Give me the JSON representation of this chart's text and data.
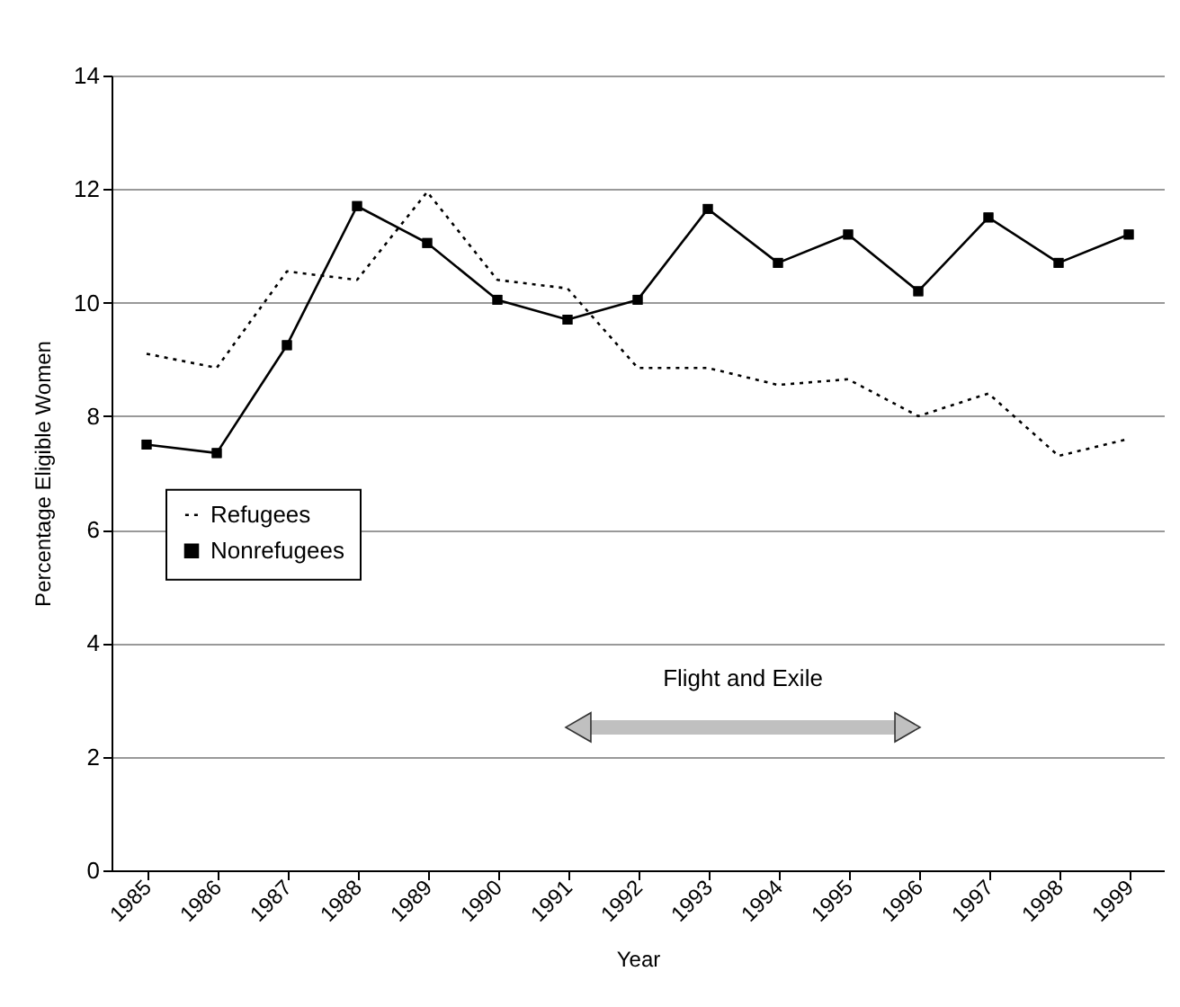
{
  "chart_data": {
    "type": "line",
    "xlabel": "Year",
    "ylabel": "Percentage Eligible Women",
    "categories": [
      "1985",
      "1986",
      "1987",
      "1988",
      "1989",
      "1990",
      "1991",
      "1992",
      "1993",
      "1994",
      "1995",
      "1996",
      "1997",
      "1998",
      "1999"
    ],
    "series": [
      {
        "name": "Refugees",
        "color": "#000000",
        "line_style": "dotted",
        "marker": "none",
        "values": [
          9.1,
          8.85,
          10.55,
          10.4,
          11.95,
          10.4,
          10.25,
          8.85,
          8.85,
          8.55,
          8.65,
          8.0,
          8.4,
          7.3,
          7.6
        ]
      },
      {
        "name": "Nonrefugees",
        "color": "#000000",
        "line_style": "solid",
        "marker": "square",
        "values": [
          7.5,
          7.35,
          9.25,
          11.7,
          11.05,
          10.05,
          9.7,
          10.05,
          11.65,
          10.7,
          11.2,
          10.2,
          11.5,
          10.7,
          11.2
        ]
      }
    ],
    "ylim": [
      0,
      14
    ],
    "yticks": [
      0,
      2,
      4,
      6,
      8,
      10,
      12,
      14
    ],
    "grid": "y",
    "legend": "left",
    "annotations": [
      "Flight and Exile"
    ]
  }
}
